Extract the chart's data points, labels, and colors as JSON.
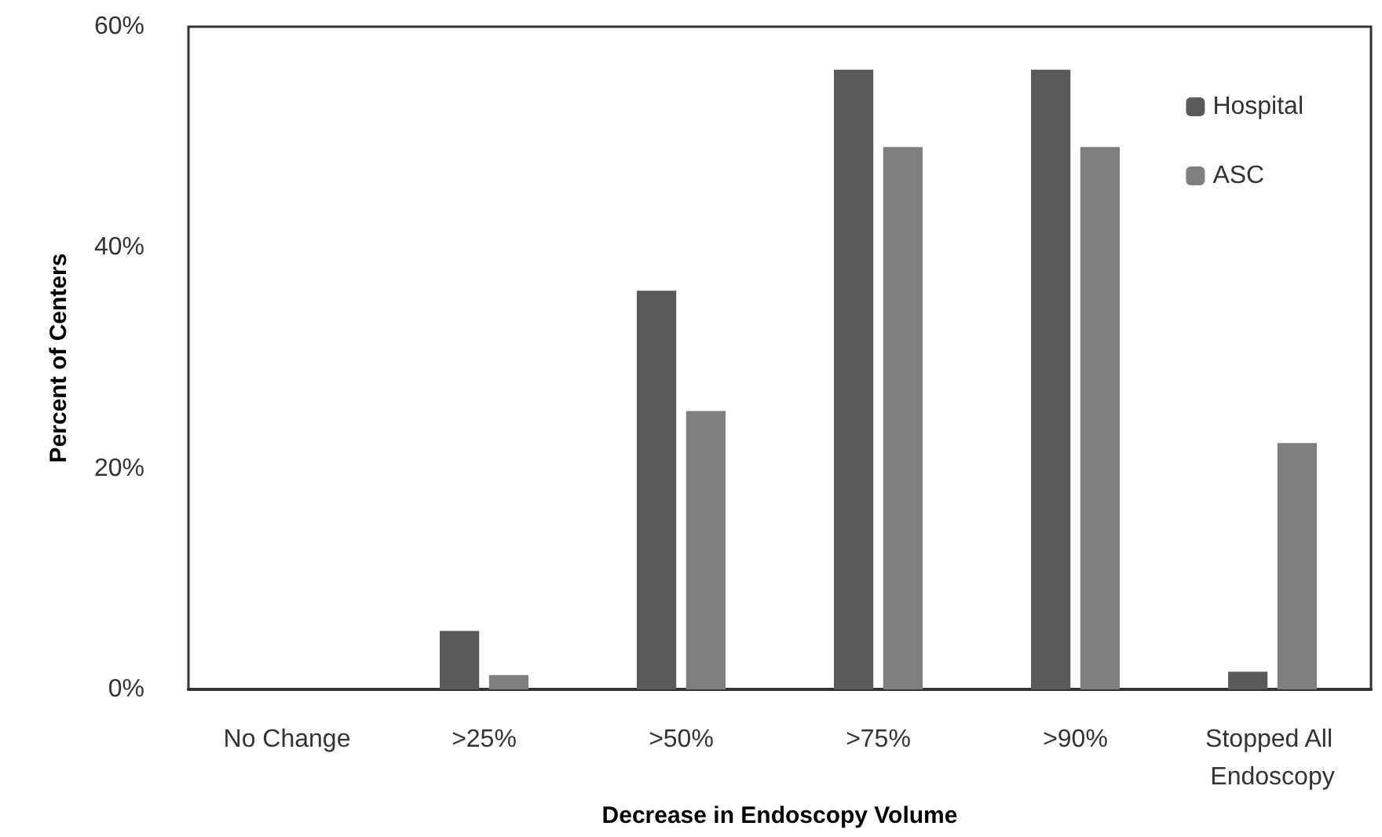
{
  "chart_data": {
    "type": "bar",
    "xlabel": "Decrease in Endoscopy Volume",
    "ylabel": "Percent of Centers",
    "categories": [
      "No Change",
      ">25%",
      ">50%",
      ">75%",
      ">90%",
      "Stopped All Endoscopy"
    ],
    "series": [
      {
        "name": "Hospital",
        "color": "#5a5a5a",
        "values": [
          0,
          5.3,
          36.1,
          56.1,
          56.1,
          1.6
        ]
      },
      {
        "name": "ASC",
        "color": "#7f7f7f",
        "values": [
          0,
          1.3,
          25.2,
          49.1,
          49.1,
          22.3
        ]
      }
    ],
    "ylim": [
      0,
      60
    ],
    "yticks": [
      {
        "value": 0,
        "label": "0%"
      },
      {
        "value": 20,
        "label": "20%"
      },
      {
        "value": 40,
        "label": "40%"
      },
      {
        "value": 60,
        "label": "60%"
      }
    ],
    "grid": false,
    "legend": "top right"
  }
}
